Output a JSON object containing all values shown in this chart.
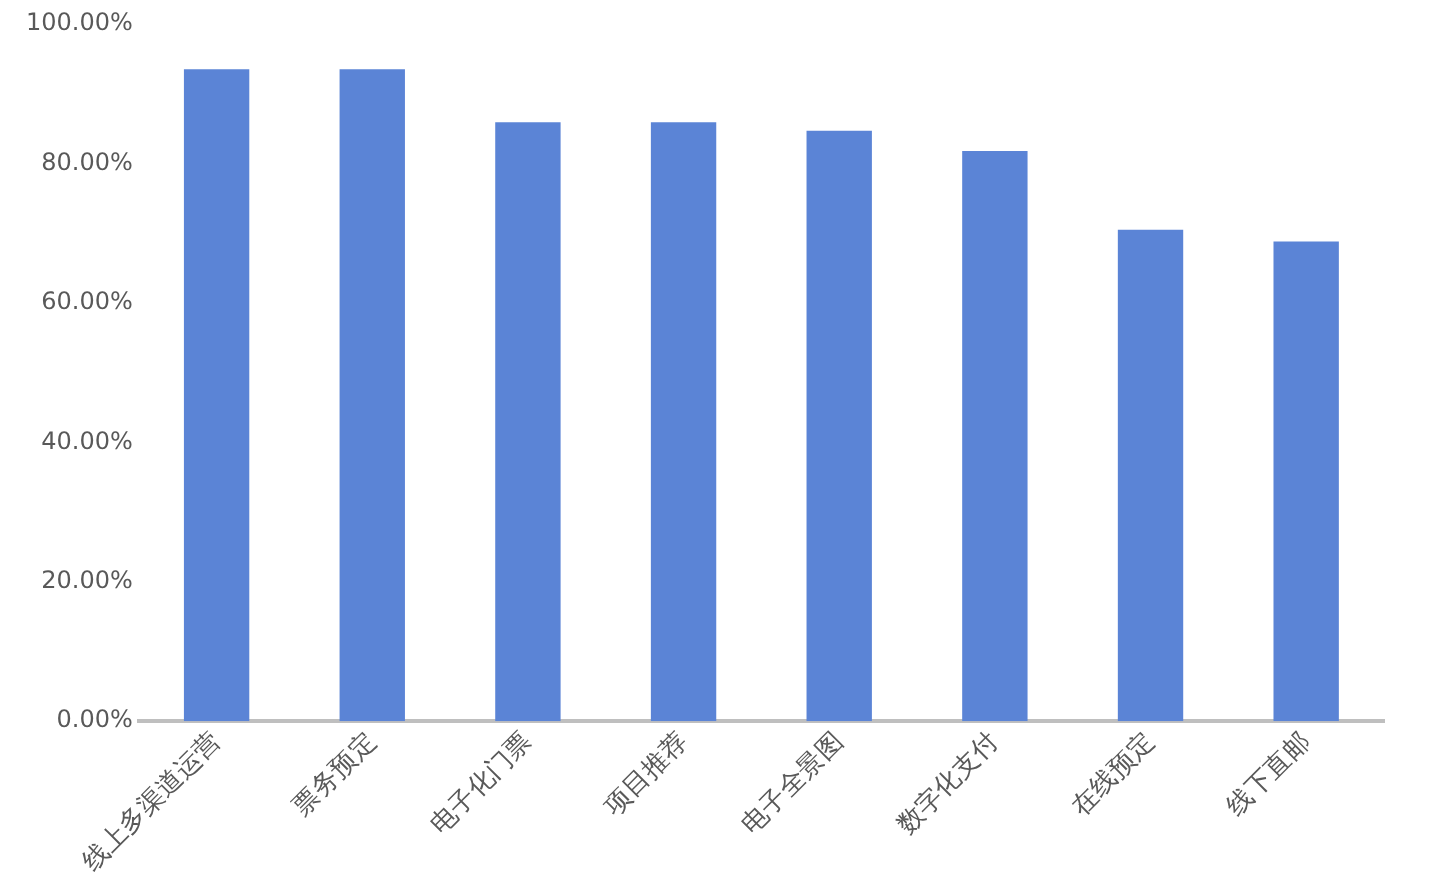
{
  "chart_data": {
    "type": "bar",
    "categories": [
      "线上多渠道运营",
      "票务预定",
      "电子化门票",
      "项目推荐",
      "电子全景图",
      "数字化支付",
      "在线预定",
      "线下直邮"
    ],
    "values": [
      93.5,
      93.5,
      85.9,
      85.9,
      84.7,
      81.8,
      70.5,
      68.8
    ],
    "color": "#5b84d6",
    "ylim": [
      0,
      100
    ],
    "yticks": [
      {
        "value": 0,
        "label": "0.00%"
      },
      {
        "value": 20,
        "label": "20.00%"
      },
      {
        "value": 40,
        "label": "40.00%"
      },
      {
        "value": 60,
        "label": "60.00%"
      },
      {
        "value": 80,
        "label": "80.00%"
      },
      {
        "value": 100,
        "label": "100.00%"
      }
    ],
    "grid": false,
    "legend": false
  }
}
